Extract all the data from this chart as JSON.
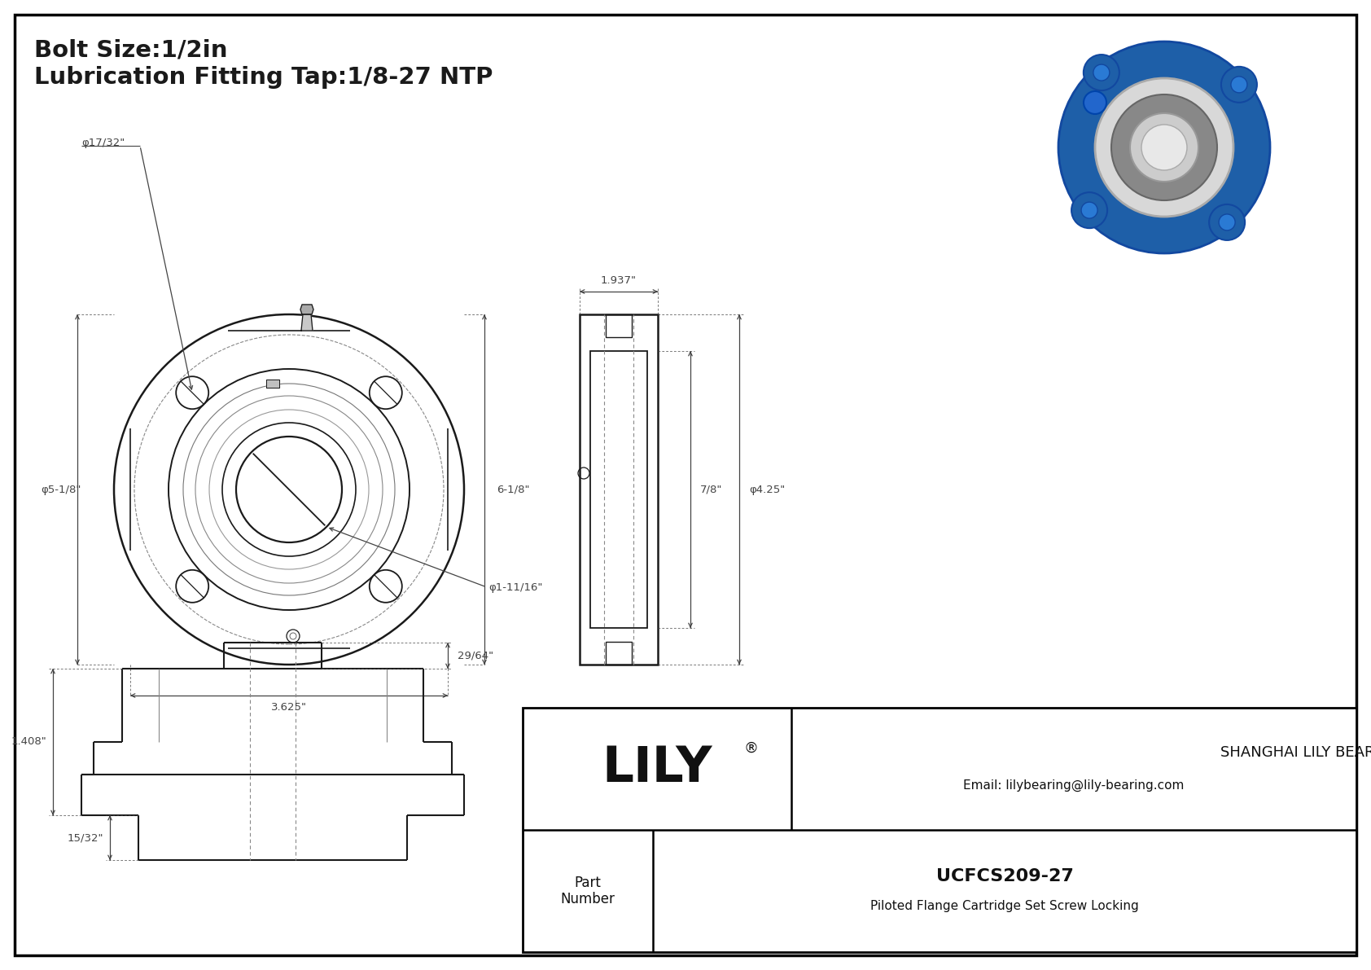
{
  "bg_color": "#ffffff",
  "lc": "#1a1a1a",
  "dc": "#444444",
  "title_line1": "Bolt Size:1/2in",
  "title_line2": "Lubrication Fitting Tap:1/8-27 NTP",
  "company_name": "SHANGHAI LILY BEARING LIMITED",
  "company_email": "Email: lilybearing@lily-bearing.com",
  "brand_reg": "®",
  "part_label": "Part\nNumber",
  "part_number": "UCFCS209-27",
  "part_desc": "Piloted Flange Cartridge Set Screw Locking",
  "dim_phi_bolt": "φ17/32\"",
  "dim_phi_flange": "φ5-1/8\"",
  "dim_height": "6-1/8\"",
  "dim_width": "3.625\"",
  "dim_phi_bore": "φ1-11/16\"",
  "dim_side_width": "1.937\"",
  "dim_side_depth": "7/8\"",
  "dim_side_phi": "φ4.25\"",
  "dim_bottom_h1": "1.408\"",
  "dim_bottom_h2": "15/32\"",
  "dim_bottom_w": "29/64\""
}
